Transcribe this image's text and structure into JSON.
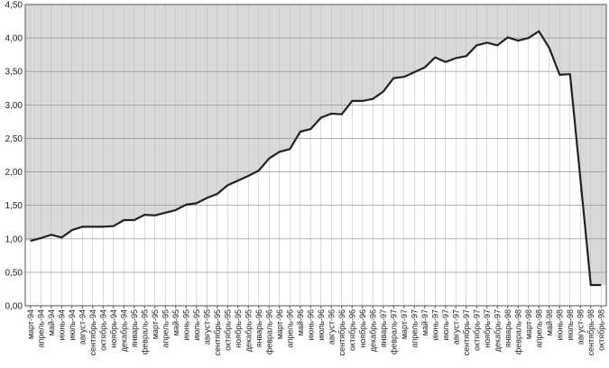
{
  "chart_data": {
    "type": "line",
    "categories": [
      "март-94",
      "апрель-94",
      "май-94",
      "июнь-94",
      "июль-94",
      "август-94",
      "сентябрь-94",
      "октябрь-94",
      "ноябрь-94",
      "декабрь-94",
      "январь-95",
      "февраль-95",
      "март-95",
      "апрель-95",
      "май-95",
      "июнь-95",
      "июль-95",
      "август-95",
      "сентябрь-95",
      "октябрь-95",
      "ноябрь-95",
      "декабрь-95",
      "январь-96",
      "февраль-96",
      "март-96",
      "апрель-96",
      "май-96",
      "июнь-96",
      "июль-96",
      "август-96",
      "сентябрь-96",
      "октябрь-96",
      "ноябрь-96",
      "декабрь-96",
      "январь-97",
      "февраль-97",
      "март-97",
      "апрель-97",
      "май-97",
      "июнь-97",
      "июль-97",
      "август-97",
      "сентябрь-97",
      "октябрь-97",
      "ноябрь-97",
      "декабрь-97",
      "январь-98",
      "февраль-98",
      "март-98",
      "апрель-98",
      "май-98",
      "июнь-98",
      "июль-98",
      "август-98",
      "сентябрь-98",
      "октябрь-98"
    ],
    "values": [
      0.97,
      1.01,
      1.06,
      1.02,
      1.13,
      1.18,
      1.18,
      1.18,
      1.19,
      1.28,
      1.28,
      1.36,
      1.35,
      1.39,
      1.43,
      1.51,
      1.53,
      1.61,
      1.67,
      1.8,
      1.87,
      1.94,
      2.02,
      2.2,
      2.3,
      2.34,
      2.6,
      2.64,
      2.81,
      2.87,
      2.86,
      3.06,
      3.06,
      3.09,
      3.2,
      3.4,
      3.42,
      3.49,
      3.56,
      3.71,
      3.64,
      3.7,
      3.73,
      3.89,
      3.93,
      3.89,
      4.01,
      3.96,
      4.0,
      4.1,
      3.85,
      3.45,
      3.46,
      1.9,
      0.31,
      0.31
    ],
    "color": "#222222",
    "ylim": [
      0,
      4.5
    ],
    "yticks": [
      {
        "value": 0,
        "label": "0,00"
      },
      {
        "value": 0.5,
        "label": "0,50"
      },
      {
        "value": 1,
        "label": "1,00"
      },
      {
        "value": 1.5,
        "label": "1,50"
      },
      {
        "value": 2,
        "label": "2,00"
      },
      {
        "value": 2.5,
        "label": "2,50"
      },
      {
        "value": 3,
        "label": "3,00"
      },
      {
        "value": 3.5,
        "label": "3,50"
      },
      {
        "value": 4,
        "label": "4,00"
      },
      {
        "value": 4.5,
        "label": "4,50"
      }
    ],
    "grid": true
  }
}
